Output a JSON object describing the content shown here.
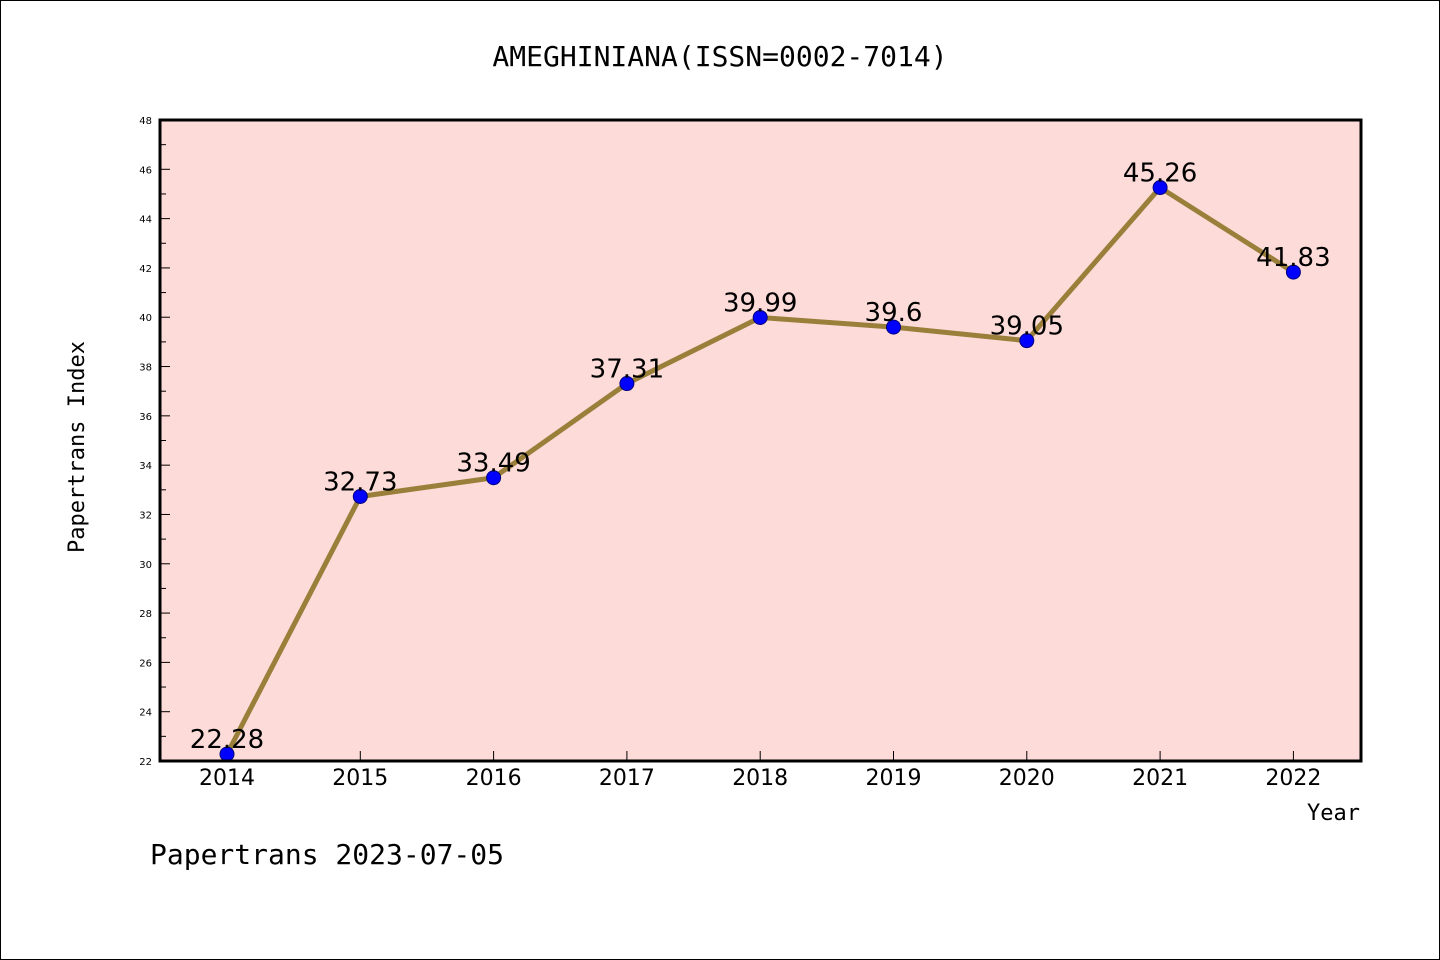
{
  "chart_data": {
    "type": "line",
    "title": "AMEGHINIANA(ISSN=0002-7014)",
    "xlabel": "Year",
    "ylabel": "Papertrans Index",
    "categories": [
      "2014",
      "2015",
      "2016",
      "2017",
      "2018",
      "2019",
      "2020",
      "2021",
      "2022"
    ],
    "values": [
      22.28,
      32.73,
      33.49,
      37.31,
      39.99,
      39.6,
      39.05,
      45.26,
      41.83
    ],
    "data_labels": [
      "22.28",
      "32.73",
      "33.49",
      "37.31",
      "39.99",
      "39.6",
      "39.05",
      "45.26",
      "41.83"
    ],
    "ylim": [
      22,
      48
    ],
    "yticks": [
      "22",
      "24",
      "26",
      "28",
      "30",
      "32",
      "34",
      "36",
      "38",
      "40",
      "42",
      "44",
      "46",
      "48"
    ],
    "grid": false,
    "legend": "none",
    "colors": {
      "plot_background": "#fddbd8",
      "line": "#9a7f3a",
      "marker": "#0000ff",
      "marker_edge": "#000080"
    }
  },
  "footer": "Papertrans 2023-07-05"
}
